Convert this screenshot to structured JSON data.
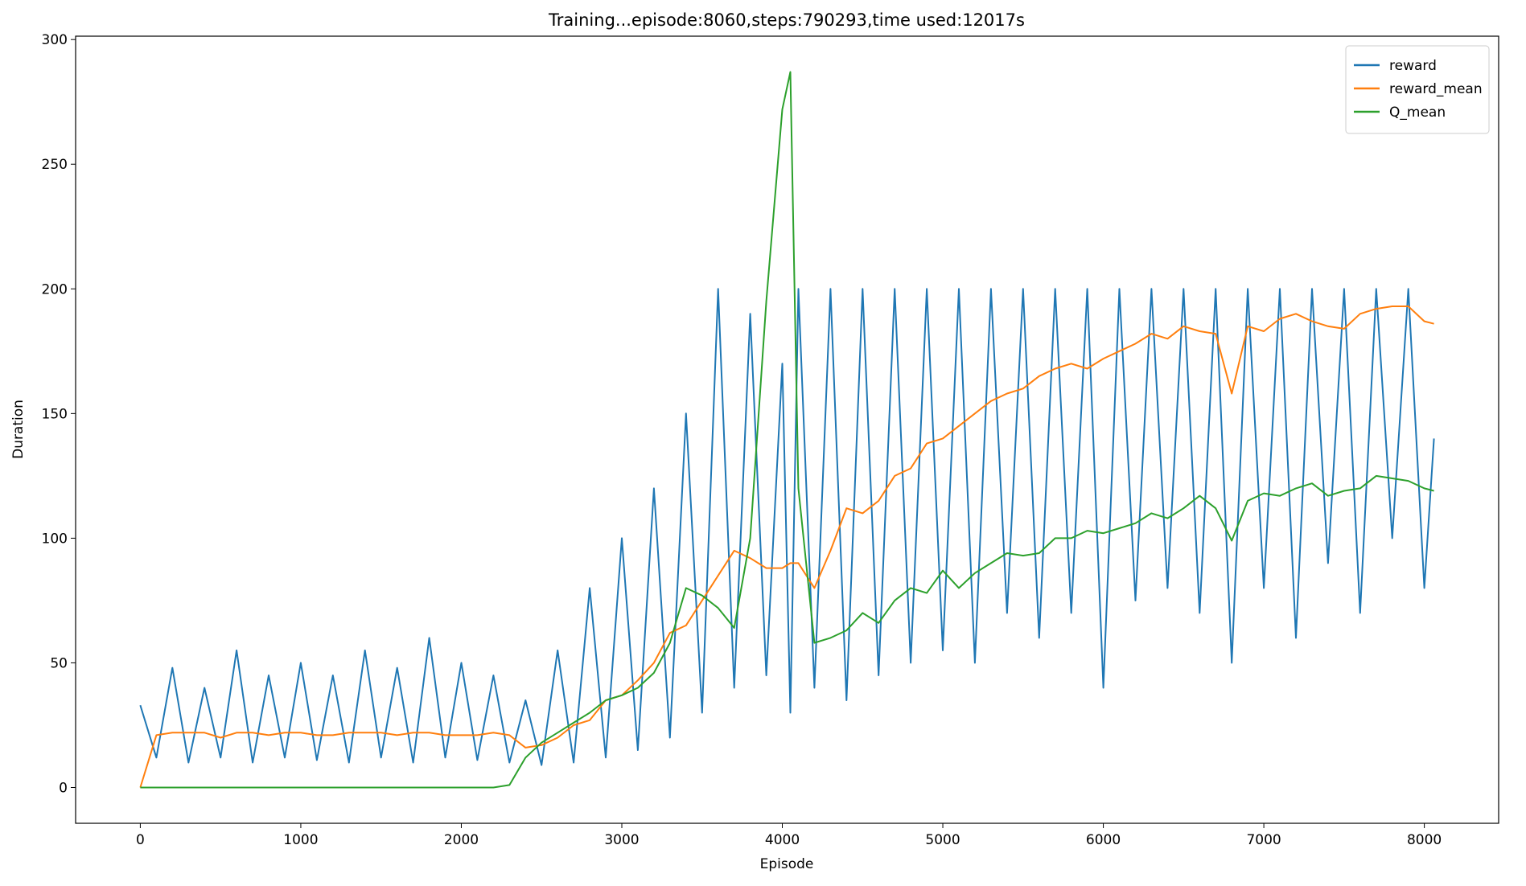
{
  "chart_data": {
    "type": "line",
    "title": "Training...episode:8060,steps:790293,time used:12017s",
    "x_label": "Episode",
    "y_label": "Duration",
    "x": [
      0,
      100,
      200,
      300,
      400,
      500,
      600,
      700,
      800,
      900,
      1000,
      1100,
      1200,
      1300,
      1400,
      1500,
      1600,
      1700,
      1800,
      1900,
      2000,
      2100,
      2200,
      2300,
      2400,
      2500,
      2600,
      2700,
      2800,
      2900,
      3000,
      3100,
      3200,
      3300,
      3400,
      3500,
      3600,
      3700,
      3800,
      3900,
      4000,
      4050,
      4100,
      4200,
      4300,
      4400,
      4500,
      4600,
      4700,
      4800,
      4900,
      5000,
      5100,
      5200,
      5300,
      5400,
      5500,
      5600,
      5700,
      5800,
      5900,
      6000,
      6100,
      6200,
      6300,
      6400,
      6500,
      6600,
      6700,
      6800,
      6900,
      7000,
      7100,
      7200,
      7300,
      7400,
      7500,
      7600,
      7700,
      7800,
      7900,
      8000,
      8060
    ],
    "series": [
      {
        "name": "reward",
        "color": "#1f77b4",
        "values": [
          33,
          12,
          48,
          10,
          40,
          12,
          55,
          10,
          45,
          12,
          50,
          11,
          45,
          10,
          55,
          12,
          48,
          10,
          60,
          12,
          50,
          11,
          45,
          10,
          35,
          9,
          55,
          10,
          80,
          12,
          100,
          15,
          120,
          20,
          150,
          30,
          200,
          40,
          190,
          45,
          170,
          30,
          200,
          40,
          200,
          35,
          200,
          45,
          200,
          50,
          200,
          55,
          200,
          50,
          200,
          70,
          200,
          60,
          200,
          70,
          200,
          40,
          200,
          75,
          200,
          80,
          200,
          70,
          200,
          50,
          200,
          80,
          200,
          60,
          200,
          90,
          200,
          70,
          200,
          100,
          200,
          80,
          140
        ]
      },
      {
        "name": "reward_mean",
        "color": "#ff7f0e",
        "values": [
          0,
          21,
          22,
          22,
          22,
          20,
          22,
          22,
          21,
          22,
          22,
          21,
          21,
          22,
          22,
          22,
          21,
          22,
          22,
          21,
          21,
          21,
          22,
          21,
          16,
          17,
          20,
          25,
          27,
          35,
          37,
          43,
          50,
          62,
          65,
          75,
          85,
          95,
          92,
          88,
          88,
          90,
          90,
          80,
          95,
          112,
          110,
          115,
          125,
          128,
          138,
          140,
          145,
          150,
          155,
          158,
          160,
          165,
          168,
          170,
          168,
          172,
          175,
          178,
          182,
          180,
          185,
          183,
          182,
          158,
          185,
          183,
          188,
          190,
          187,
          185,
          184,
          190,
          192,
          193,
          193,
          187,
          186
        ]
      },
      {
        "name": "Q_mean",
        "color": "#2ca02c",
        "values": [
          0,
          0,
          0,
          0,
          0,
          0,
          0,
          0,
          0,
          0,
          0,
          0,
          0,
          0,
          0,
          0,
          0,
          0,
          0,
          0,
          0,
          0,
          0,
          1,
          12,
          18,
          22,
          26,
          30,
          35,
          37,
          40,
          46,
          58,
          80,
          77,
          72,
          64,
          100,
          195,
          272,
          287,
          120,
          58,
          60,
          63,
          70,
          66,
          75,
          80,
          78,
          87,
          80,
          86,
          90,
          94,
          93,
          94,
          100,
          100,
          103,
          102,
          104,
          106,
          110,
          108,
          112,
          117,
          112,
          99,
          115,
          118,
          117,
          120,
          122,
          117,
          119,
          120,
          125,
          124,
          123,
          120,
          119
        ]
      }
    ],
    "xlim": [
      -403,
      8463
    ],
    "ylim": [
      -14.35,
      301.35
    ],
    "xticks": [
      0,
      1000,
      2000,
      3000,
      4000,
      5000,
      6000,
      7000,
      8000
    ],
    "yticks": [
      0,
      50,
      100,
      150,
      200,
      250,
      300
    ],
    "legend": "upper right",
    "grid": false
  }
}
